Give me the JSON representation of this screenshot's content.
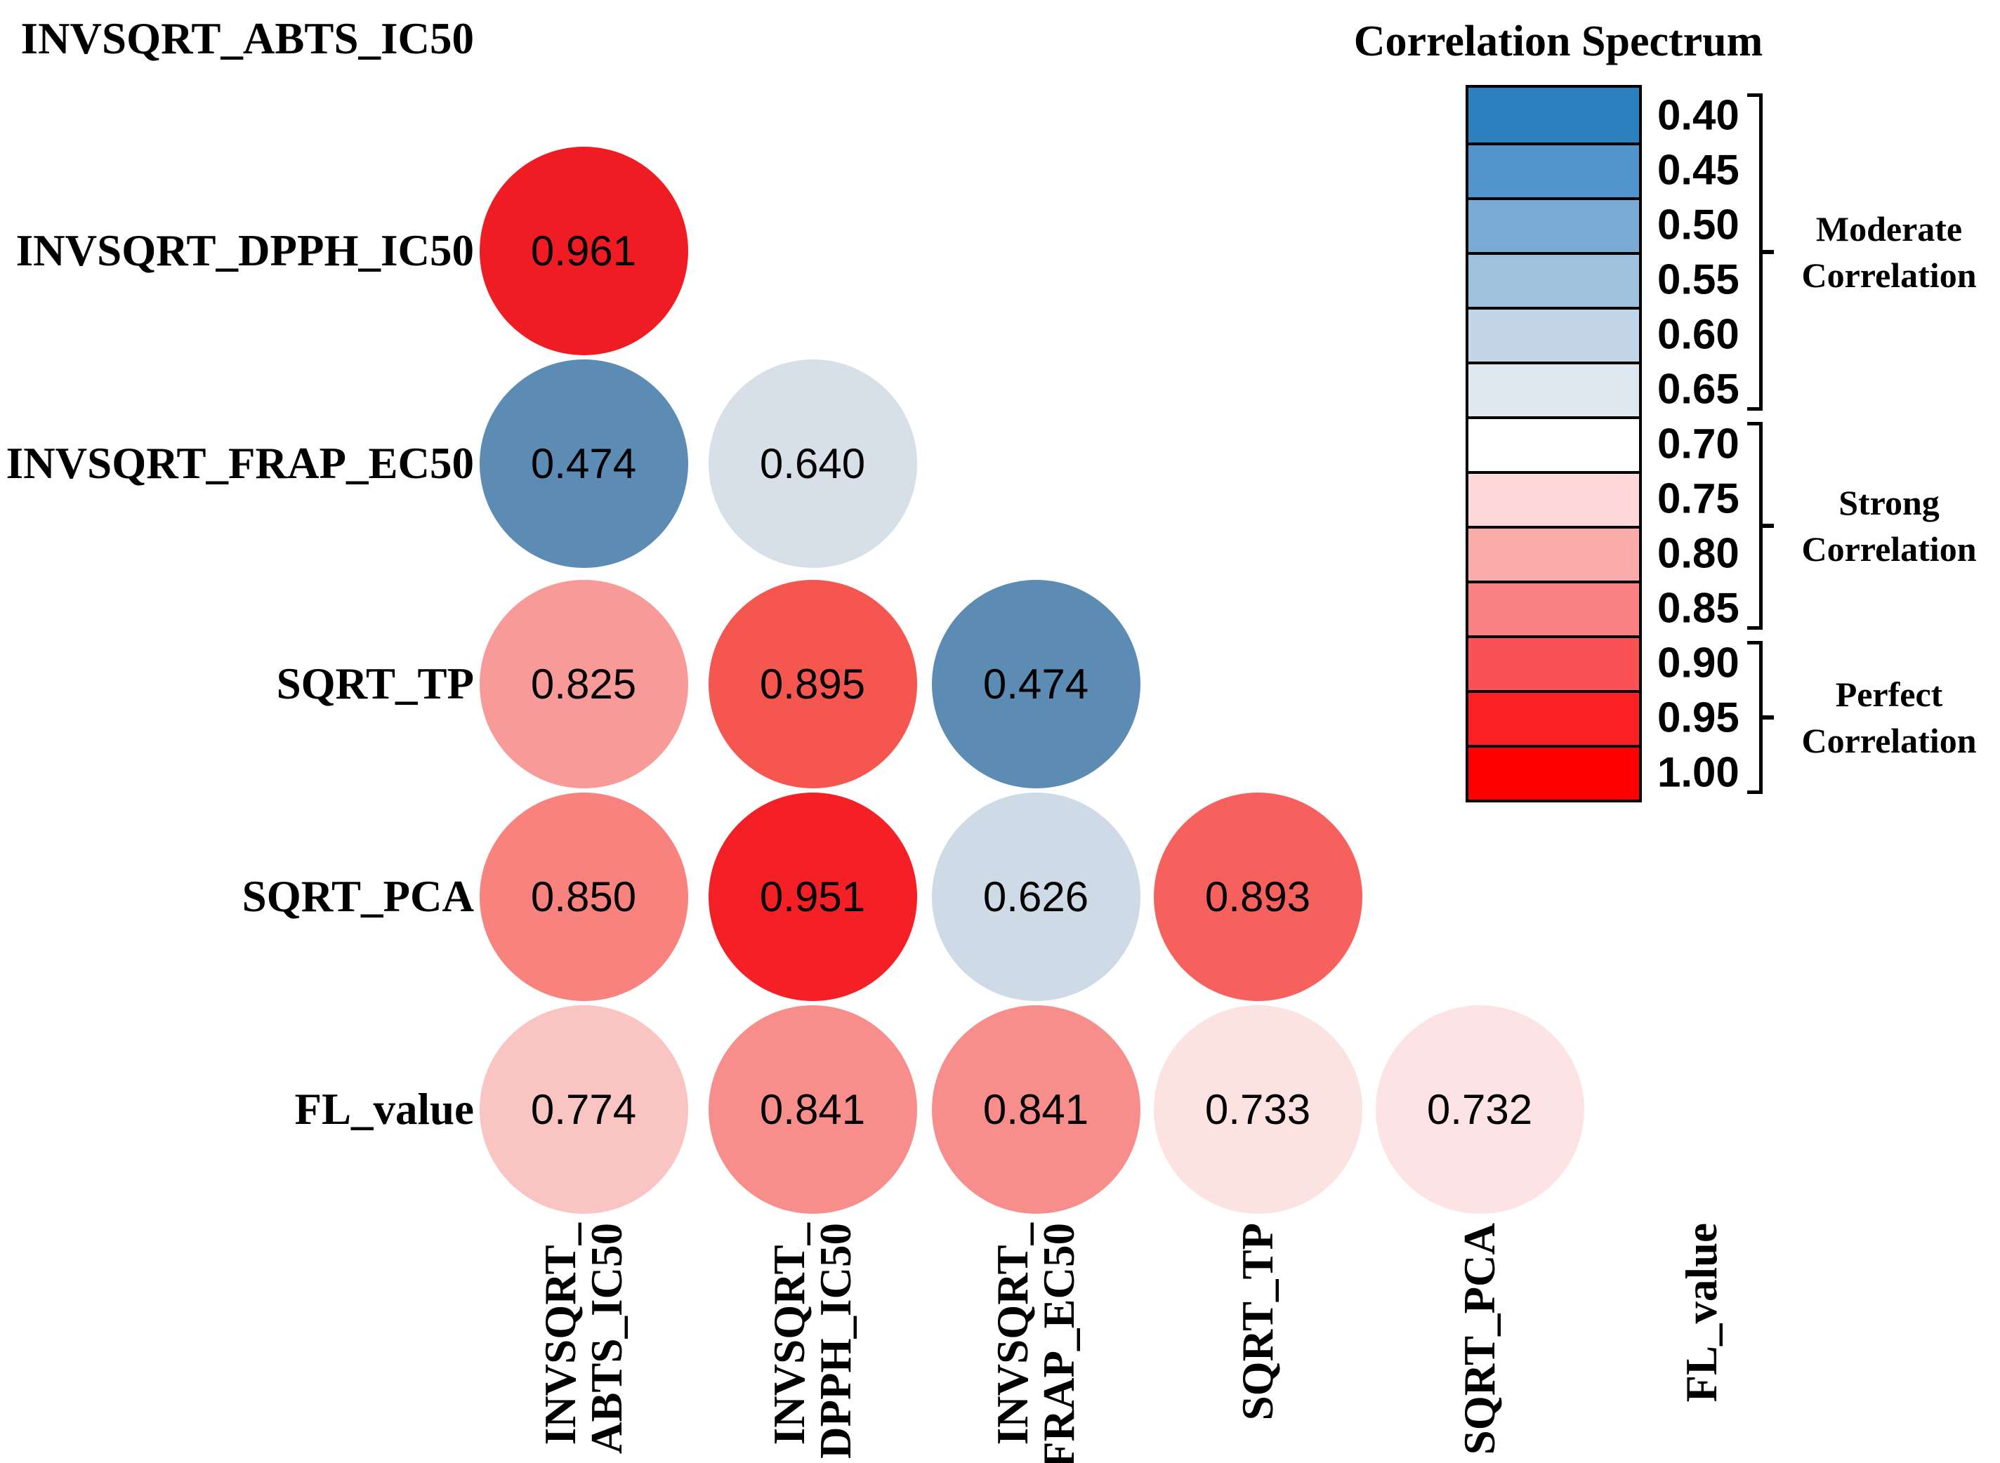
{
  "matrix": {
    "variables": [
      {
        "name": "INVSQRT_ABTS_IC50",
        "col_lines": [
          "INVSQRT_",
          "ABTS_IC50"
        ]
      },
      {
        "name": "INVSQRT_DPPH_IC50",
        "col_lines": [
          "INVSQRT_",
          "DPPH_IC50"
        ]
      },
      {
        "name": "INVSQRT_FRAP_EC50",
        "col_lines": [
          "INVSQRT_",
          "FRAP_EC50"
        ]
      },
      {
        "name": "SQRT_TP",
        "col_lines": [
          "SQRT_TP"
        ]
      },
      {
        "name": "SQRT_PCA",
        "col_lines": [
          "SQRT_PCA"
        ]
      },
      {
        "name": "FL_value",
        "col_lines": [
          "FL_value"
        ]
      }
    ],
    "cells": [
      {
        "row": 1,
        "col": 0,
        "value": "0.961",
        "color": "#EF1C23"
      },
      {
        "row": 2,
        "col": 0,
        "value": "0.474",
        "color": "#5C8CB4"
      },
      {
        "row": 2,
        "col": 1,
        "value": "0.640",
        "color": "#D7DFE8"
      },
      {
        "row": 3,
        "col": 0,
        "value": "0.825",
        "color": "#F89B98"
      },
      {
        "row": 3,
        "col": 1,
        "value": "0.895",
        "color": "#F5564F"
      },
      {
        "row": 3,
        "col": 2,
        "value": "0.474",
        "color": "#5C8CB4"
      },
      {
        "row": 4,
        "col": 0,
        "value": "0.850",
        "color": "#F8827E"
      },
      {
        "row": 4,
        "col": 1,
        "value": "0.951",
        "color": "#F42025"
      },
      {
        "row": 4,
        "col": 2,
        "value": "0.626",
        "color": "#CEDAE5"
      },
      {
        "row": 4,
        "col": 3,
        "value": "0.893",
        "color": "#F7615D"
      },
      {
        "row": 5,
        "col": 0,
        "value": "0.774",
        "color": "#FAC4C3"
      },
      {
        "row": 5,
        "col": 1,
        "value": "0.841",
        "color": "#F78E8B"
      },
      {
        "row": 5,
        "col": 2,
        "value": "0.841",
        "color": "#F78E8B"
      },
      {
        "row": 5,
        "col": 3,
        "value": "0.733",
        "color": "#FDE2E2"
      },
      {
        "row": 5,
        "col": 4,
        "value": "0.732",
        "color": "#FDE3E3"
      }
    ]
  },
  "legend": {
    "title": "Correlation Spectrum",
    "boxes": [
      {
        "tick": "0.40",
        "color": "#2B80C0"
      },
      {
        "tick": "0.45",
        "color": "#5193CB"
      },
      {
        "tick": "0.50",
        "color": "#79AAD3"
      },
      {
        "tick": "0.55",
        "color": "#9EC1DD"
      },
      {
        "tick": "0.60",
        "color": "#C2D4E7"
      },
      {
        "tick": "0.65",
        "color": "#DEE8F1"
      },
      {
        "tick": "0.70",
        "color": "#FFFFFF"
      },
      {
        "tick": "0.75",
        "color": "#FED8D8"
      },
      {
        "tick": "0.80",
        "color": "#FCABAB"
      },
      {
        "tick": "0.85",
        "color": "#FB8283"
      },
      {
        "tick": "0.90",
        "color": "#FA5254"
      },
      {
        "tick": "0.95",
        "color": "#FB2024"
      },
      {
        "tick": "1.00",
        "color": "#FE0000"
      }
    ],
    "groups": [
      {
        "lines": [
          "Moderate",
          "Correlation"
        ],
        "box_start": 0,
        "box_end": 5
      },
      {
        "lines": [
          "Strong",
          "Correlation"
        ],
        "box_start": 6,
        "box_end": 9
      },
      {
        "lines": [
          "Perfect",
          "Correlation"
        ],
        "box_start": 10,
        "box_end": 12
      }
    ]
  },
  "chart_data": {
    "type": "heatmap",
    "subtype": "correlogram-lower-triangle-circles",
    "variables": [
      "INVSQRT_ABTS_IC50",
      "INVSQRT_DPPH_IC50",
      "INVSQRT_FRAP_EC50",
      "SQRT_TP",
      "SQRT_PCA",
      "FL_value"
    ],
    "pairs": [
      {
        "row": "INVSQRT_DPPH_IC50",
        "col": "INVSQRT_ABTS_IC50",
        "r": 0.961
      },
      {
        "row": "INVSQRT_FRAP_EC50",
        "col": "INVSQRT_ABTS_IC50",
        "r": 0.474
      },
      {
        "row": "INVSQRT_FRAP_EC50",
        "col": "INVSQRT_DPPH_IC50",
        "r": 0.64
      },
      {
        "row": "SQRT_TP",
        "col": "INVSQRT_ABTS_IC50",
        "r": 0.825
      },
      {
        "row": "SQRT_TP",
        "col": "INVSQRT_DPPH_IC50",
        "r": 0.895
      },
      {
        "row": "SQRT_TP",
        "col": "INVSQRT_FRAP_EC50",
        "r": 0.474
      },
      {
        "row": "SQRT_PCA",
        "col": "INVSQRT_ABTS_IC50",
        "r": 0.85
      },
      {
        "row": "SQRT_PCA",
        "col": "INVSQRT_DPPH_IC50",
        "r": 0.951
      },
      {
        "row": "SQRT_PCA",
        "col": "INVSQRT_FRAP_EC50",
        "r": 0.626
      },
      {
        "row": "SQRT_PCA",
        "col": "SQRT_TP",
        "r": 0.893
      },
      {
        "row": "FL_value",
        "col": "INVSQRT_ABTS_IC50",
        "r": 0.774
      },
      {
        "row": "FL_value",
        "col": "INVSQRT_DPPH_IC50",
        "r": 0.841
      },
      {
        "row": "FL_value",
        "col": "INVSQRT_FRAP_EC50",
        "r": 0.841
      },
      {
        "row": "FL_value",
        "col": "SQRT_TP",
        "r": 0.733
      },
      {
        "row": "FL_value",
        "col": "SQRT_PCA",
        "r": 0.732
      }
    ],
    "colorbar": {
      "title": "Correlation Spectrum",
      "ticks": [
        0.4,
        0.45,
        0.5,
        0.55,
        0.6,
        0.65,
        0.7,
        0.75,
        0.8,
        0.85,
        0.9,
        0.95,
        1.0
      ],
      "groups": [
        {
          "label": "Moderate Correlation",
          "tick_range": [
            0.4,
            0.65
          ]
        },
        {
          "label": "Strong Correlation",
          "tick_range": [
            0.7,
            0.85
          ]
        },
        {
          "label": "Perfect Correlation",
          "tick_range": [
            0.9,
            1.0
          ]
        }
      ],
      "legend_position": "right",
      "grid": false
    }
  }
}
